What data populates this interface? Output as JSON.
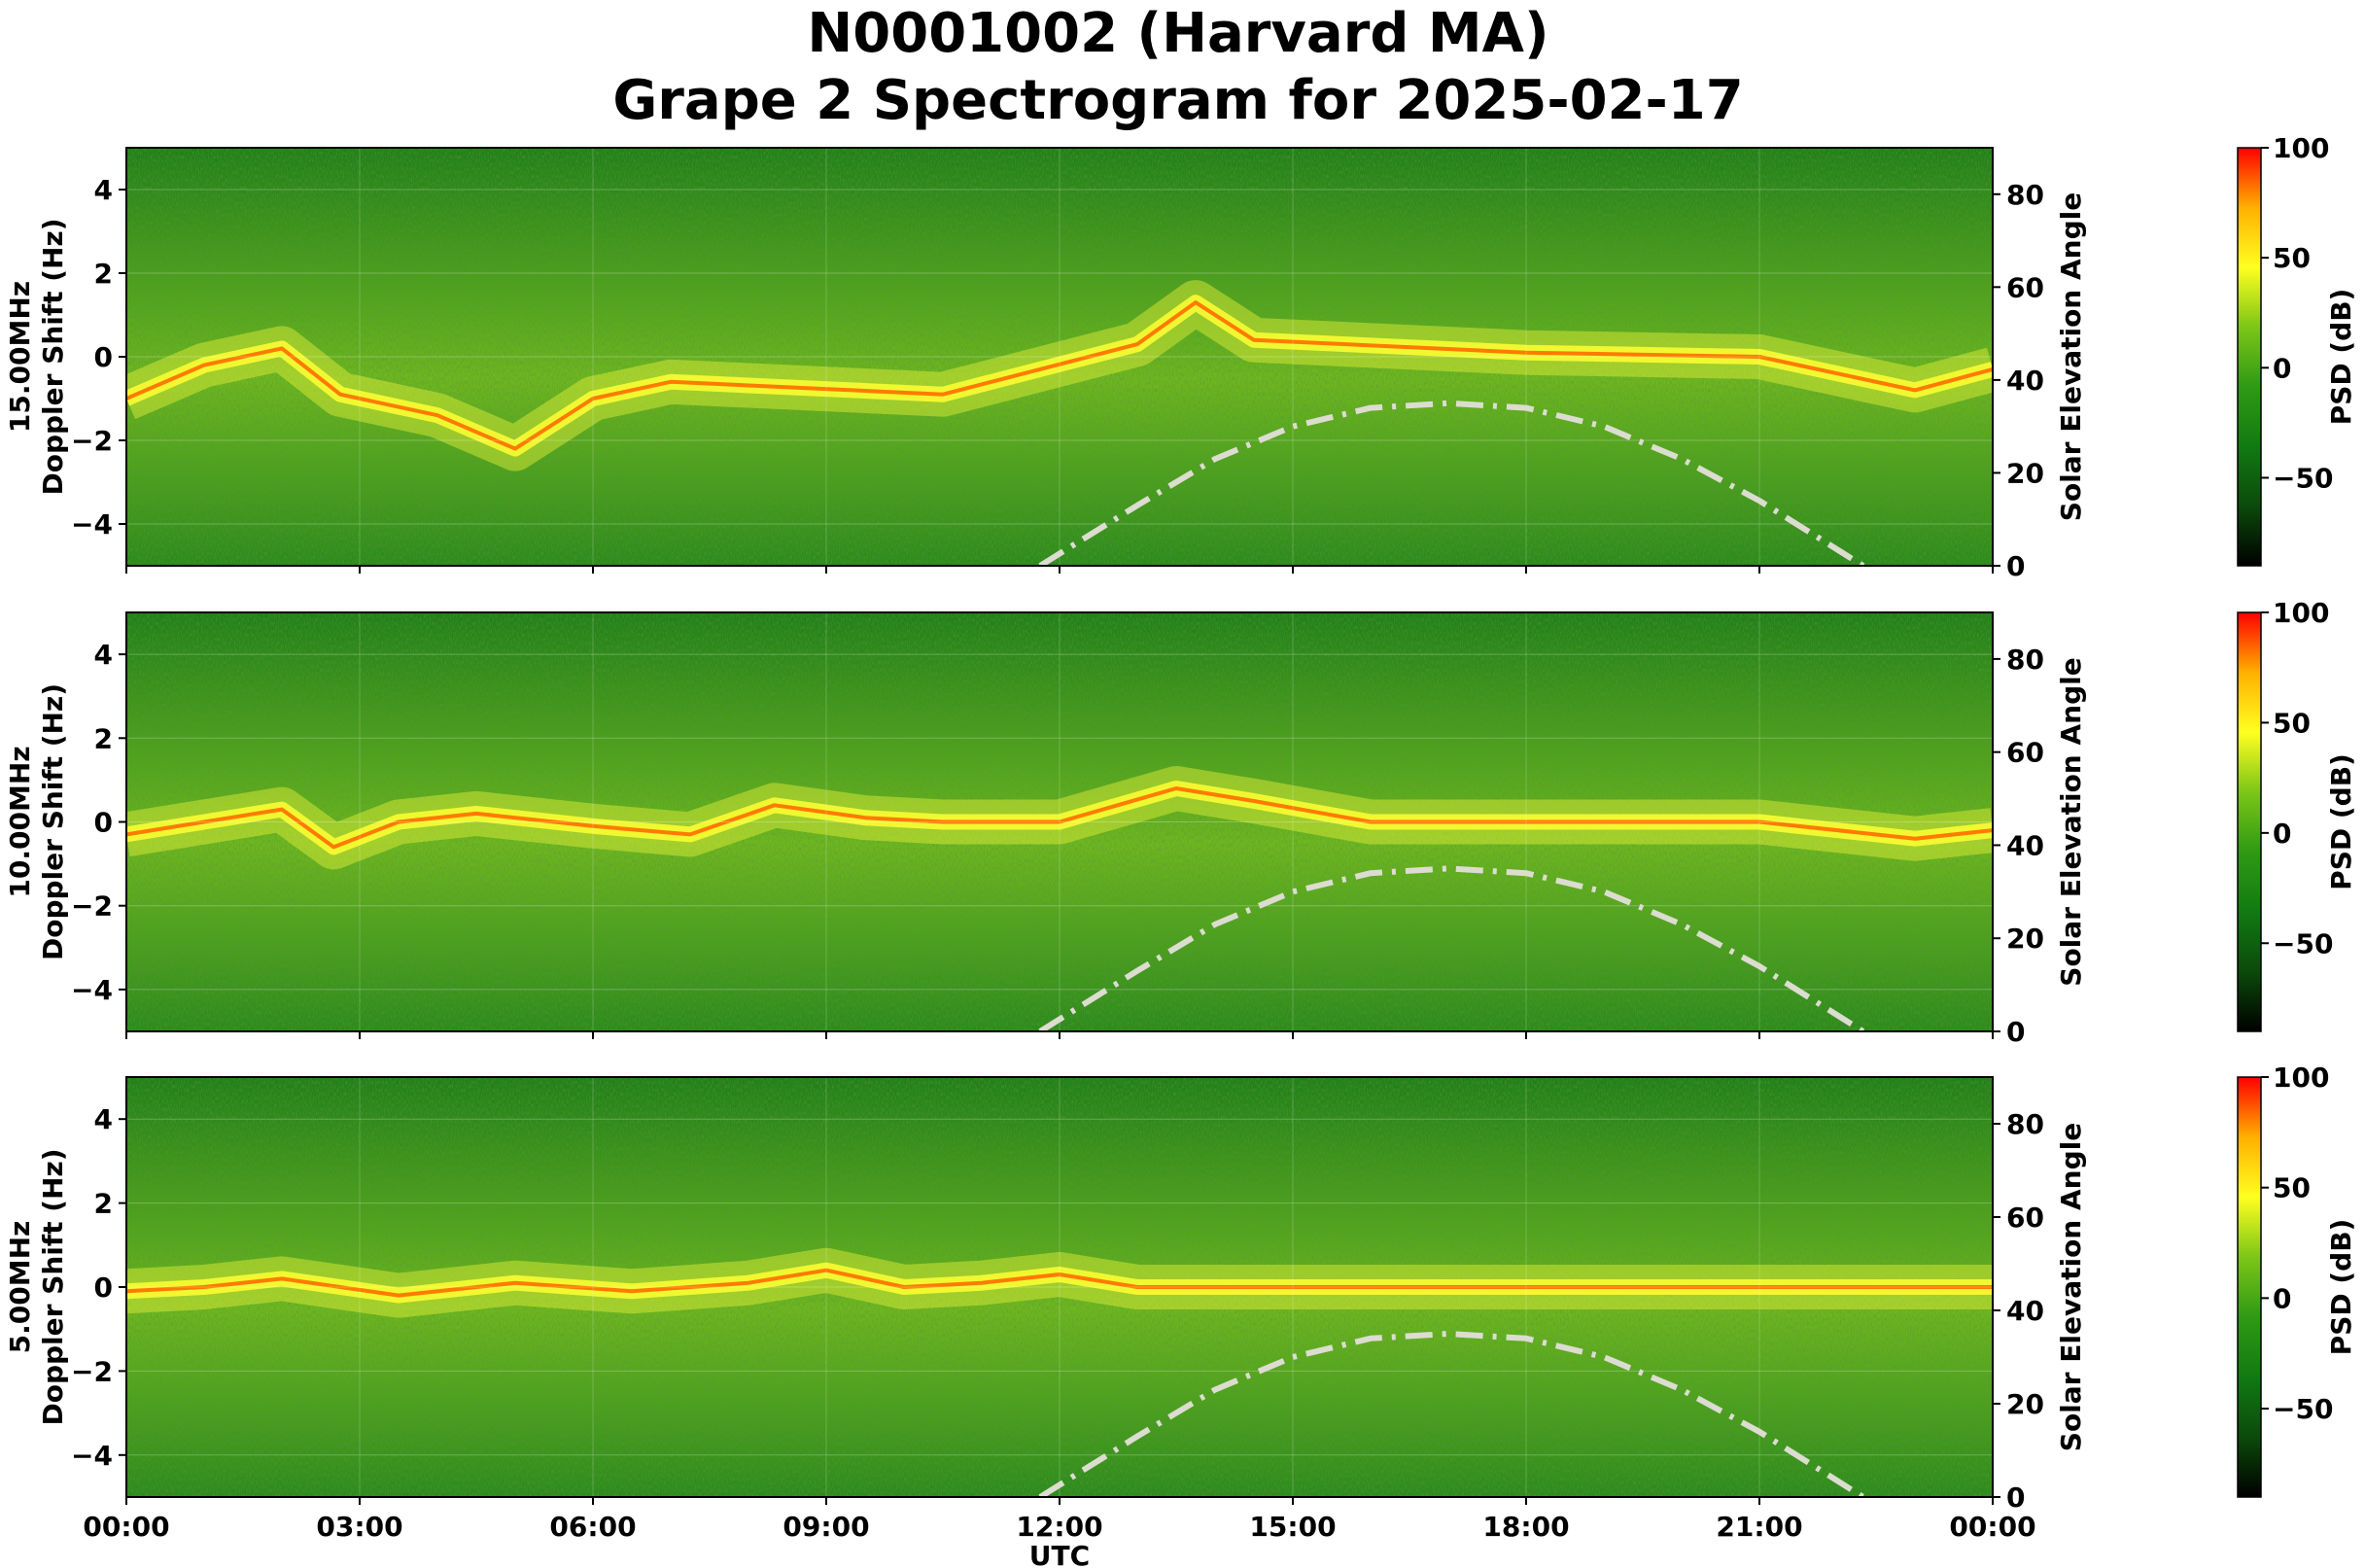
{
  "figure": {
    "title_line1": "N0001002 (Harvard MA)",
    "title_line2": "Grape 2 Spectrogram for 2025-02-17"
  },
  "chart_data": [
    {
      "type": "heatmap",
      "band_label": "15.00MHz",
      "ylabel": "Doppler Shift (Hz)",
      "ylabel2": "Solar Elevation Angle",
      "xlabel": "",
      "xlim": [
        "00:00",
        "24:00"
      ],
      "ylim": [
        -5,
        5
      ],
      "y2lim": [
        0,
        90
      ],
      "y_ticks": [
        4,
        2,
        0,
        -2,
        -4
      ],
      "y2_ticks": [
        80,
        60,
        40,
        20,
        0
      ],
      "carrier_doppler_hz": [
        {
          "t": "00:00",
          "v": -1.0
        },
        {
          "t": "01:00",
          "v": -0.2
        },
        {
          "t": "02:00",
          "v": 0.2
        },
        {
          "t": "02:45",
          "v": -0.9
        },
        {
          "t": "04:00",
          "v": -1.4
        },
        {
          "t": "05:00",
          "v": -2.2
        },
        {
          "t": "06:00",
          "v": -1.0
        },
        {
          "t": "07:00",
          "v": -0.6
        },
        {
          "t": "10:30",
          "v": -0.9
        },
        {
          "t": "13:00",
          "v": 0.3
        },
        {
          "t": "13:45",
          "v": 1.3
        },
        {
          "t": "14:30",
          "v": 0.4
        },
        {
          "t": "18:00",
          "v": 0.1
        },
        {
          "t": "21:00",
          "v": 0.0
        },
        {
          "t": "23:00",
          "v": -0.8
        },
        {
          "t": "24:00",
          "v": -0.3
        }
      ],
      "solar_elevation_deg": [
        {
          "t": "11:45",
          "v": 0
        },
        {
          "t": "13:00",
          "v": 13
        },
        {
          "t": "14:00",
          "v": 23
        },
        {
          "t": "15:00",
          "v": 30
        },
        {
          "t": "16:00",
          "v": 34
        },
        {
          "t": "17:00",
          "v": 35
        },
        {
          "t": "18:00",
          "v": 34
        },
        {
          "t": "19:00",
          "v": 30
        },
        {
          "t": "20:00",
          "v": 23
        },
        {
          "t": "21:00",
          "v": 14
        },
        {
          "t": "22:20",
          "v": 0
        }
      ]
    },
    {
      "type": "heatmap",
      "band_label": "10.00MHz",
      "ylabel": "Doppler Shift (Hz)",
      "ylabel2": "Solar Elevation Angle",
      "xlabel": "",
      "xlim": [
        "00:00",
        "24:00"
      ],
      "ylim": [
        -5,
        5
      ],
      "y2lim": [
        0,
        90
      ],
      "y_ticks": [
        4,
        2,
        0,
        -2,
        -4
      ],
      "y2_ticks": [
        80,
        60,
        40,
        20,
        0
      ],
      "carrier_doppler_hz": [
        {
          "t": "00:00",
          "v": -0.3
        },
        {
          "t": "01:00",
          "v": 0.0
        },
        {
          "t": "02:00",
          "v": 0.3
        },
        {
          "t": "02:40",
          "v": -0.6
        },
        {
          "t": "03:30",
          "v": 0.0
        },
        {
          "t": "04:30",
          "v": 0.2
        },
        {
          "t": "06:00",
          "v": -0.1
        },
        {
          "t": "07:15",
          "v": -0.3
        },
        {
          "t": "08:20",
          "v": 0.4
        },
        {
          "t": "09:30",
          "v": 0.1
        },
        {
          "t": "10:30",
          "v": 0.0
        },
        {
          "t": "12:00",
          "v": 0.0
        },
        {
          "t": "13:30",
          "v": 0.8
        },
        {
          "t": "14:30",
          "v": 0.5
        },
        {
          "t": "16:00",
          "v": 0.0
        },
        {
          "t": "21:00",
          "v": 0.0
        },
        {
          "t": "23:00",
          "v": -0.4
        },
        {
          "t": "24:00",
          "v": -0.2
        }
      ],
      "solar_elevation_deg": [
        {
          "t": "11:45",
          "v": 0
        },
        {
          "t": "13:00",
          "v": 13
        },
        {
          "t": "14:00",
          "v": 23
        },
        {
          "t": "15:00",
          "v": 30
        },
        {
          "t": "16:00",
          "v": 34
        },
        {
          "t": "17:00",
          "v": 35
        },
        {
          "t": "18:00",
          "v": 34
        },
        {
          "t": "19:00",
          "v": 30
        },
        {
          "t": "20:00",
          "v": 23
        },
        {
          "t": "21:00",
          "v": 14
        },
        {
          "t": "22:20",
          "v": 0
        }
      ]
    },
    {
      "type": "heatmap",
      "band_label": "5.00MHz",
      "ylabel": "Doppler Shift (Hz)",
      "ylabel2": "Solar Elevation Angle",
      "xlabel": "UTC",
      "xlim": [
        "00:00",
        "24:00"
      ],
      "ylim": [
        -5,
        5
      ],
      "y2lim": [
        0,
        90
      ],
      "y_ticks": [
        4,
        2,
        0,
        -2,
        -4
      ],
      "y2_ticks": [
        80,
        60,
        40,
        20,
        0
      ],
      "x_ticks": [
        "00:00",
        "03:00",
        "06:00",
        "09:00",
        "12:00",
        "15:00",
        "18:00",
        "21:00",
        "00:00"
      ],
      "carrier_doppler_hz": [
        {
          "t": "00:00",
          "v": -0.1
        },
        {
          "t": "01:00",
          "v": 0.0
        },
        {
          "t": "02:00",
          "v": 0.2
        },
        {
          "t": "03:30",
          "v": -0.2
        },
        {
          "t": "05:00",
          "v": 0.1
        },
        {
          "t": "06:30",
          "v": -0.1
        },
        {
          "t": "08:00",
          "v": 0.1
        },
        {
          "t": "09:00",
          "v": 0.4
        },
        {
          "t": "10:00",
          "v": 0.0
        },
        {
          "t": "11:00",
          "v": 0.1
        },
        {
          "t": "12:00",
          "v": 0.3
        },
        {
          "t": "13:00",
          "v": 0.0
        },
        {
          "t": "15:00",
          "v": 0.0
        },
        {
          "t": "24:00",
          "v": 0.0
        }
      ],
      "solar_elevation_deg": [
        {
          "t": "11:45",
          "v": 0
        },
        {
          "t": "13:00",
          "v": 13
        },
        {
          "t": "14:00",
          "v": 23
        },
        {
          "t": "15:00",
          "v": 30
        },
        {
          "t": "16:00",
          "v": 34
        },
        {
          "t": "17:00",
          "v": 35
        },
        {
          "t": "18:00",
          "v": 34
        },
        {
          "t": "19:00",
          "v": 30
        },
        {
          "t": "20:00",
          "v": 23
        },
        {
          "t": "21:00",
          "v": 14
        },
        {
          "t": "22:20",
          "v": 0
        }
      ]
    }
  ],
  "colorbar": {
    "label": "PSD (dB)",
    "ticks": [
      100,
      50,
      0,
      -50
    ],
    "tick_labels": [
      "100",
      "50",
      "0",
      "−50"
    ],
    "range": [
      -90,
      100
    ],
    "colors": [
      "#000000",
      "#0b4a0b",
      "#127a12",
      "#2f9a14",
      "#7cc617",
      "#ffff20",
      "#ffb000",
      "#ff0000"
    ]
  },
  "colors": {
    "background_green": "#2f8f1f",
    "carrier": "#ff7a00",
    "solar_curve": "#dcdcd0"
  }
}
